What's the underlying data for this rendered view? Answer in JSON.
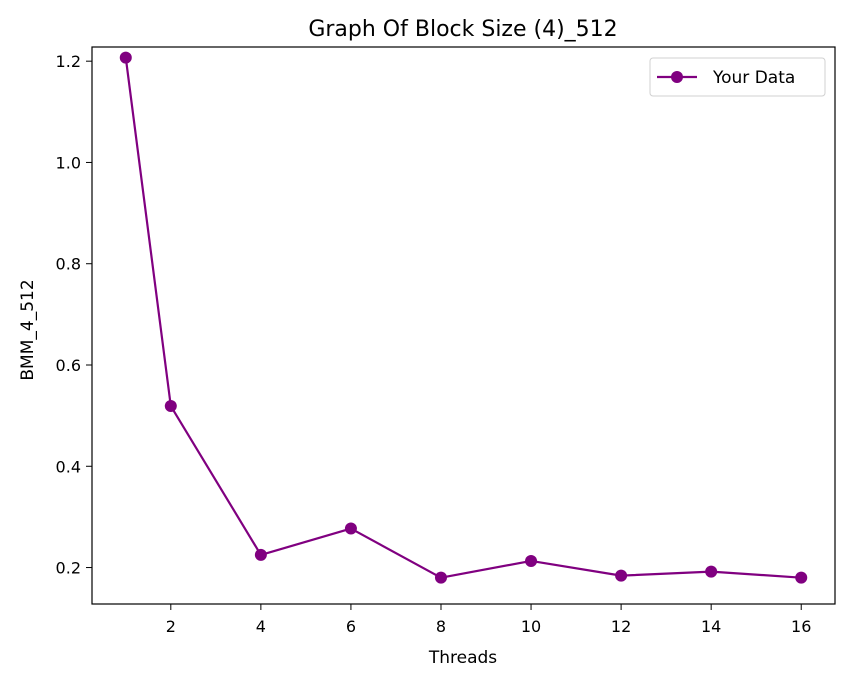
{
  "chart_data": {
    "type": "line",
    "title": "Graph Of Block Size (4)_512",
    "xlabel": "Threads",
    "ylabel": "BMM_4_512",
    "xlim": [
      0.25,
      16.75
    ],
    "ylim": [
      0.128,
      1.228
    ],
    "x_ticks": [
      2,
      4,
      6,
      8,
      10,
      12,
      14,
      16
    ],
    "x_tick_labels": [
      "2",
      "4",
      "6",
      "8",
      "10",
      "12",
      "14",
      "16"
    ],
    "y_ticks": [
      0.2,
      0.4,
      0.6,
      0.8,
      1.0,
      1.2
    ],
    "y_tick_labels": [
      "0.2",
      "0.4",
      "0.6",
      "0.8",
      "1.0",
      "1.2"
    ],
    "grid": false,
    "legend_position": "top-right",
    "series": [
      {
        "name": "Your Data",
        "color": "#800080",
        "marker": "circle",
        "x": [
          1,
          2,
          4,
          6,
          8,
          10,
          12,
          14,
          16
        ],
        "y": [
          1.207,
          0.519,
          0.225,
          0.277,
          0.18,
          0.213,
          0.184,
          0.192,
          0.18
        ]
      }
    ]
  }
}
